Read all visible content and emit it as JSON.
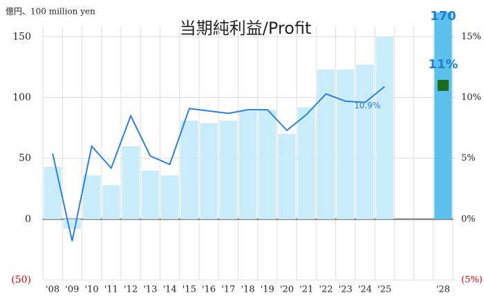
{
  "chart_data": {
    "type": "bar_line",
    "title": "当期純利益/Profit",
    "y_axis_label": "億円、100 million yen",
    "categories": [
      "'08",
      "'09",
      "'10",
      "'11",
      "'12",
      "'13",
      "'14",
      "'15",
      "'16",
      "'17",
      "'18",
      "'19",
      "'20",
      "'21",
      "'22",
      "'23",
      "'24",
      "'25",
      null,
      null,
      "'28"
    ],
    "series": [
      {
        "type": "bar",
        "color": "#c9ecfb",
        "highlight_color": "#5bc0eb",
        "values": [
          43,
          -8,
          36,
          28,
          60,
          40,
          36,
          81,
          79,
          81,
          89,
          90,
          70,
          92,
          123,
          123,
          127,
          150,
          null,
          null,
          170
        ],
        "value_labels": [
          null,
          null,
          null,
          null,
          null,
          null,
          null,
          null,
          null,
          null,
          null,
          null,
          null,
          null,
          null,
          null,
          null,
          null,
          null,
          null,
          "170"
        ]
      },
      {
        "type": "line",
        "axis": "y2",
        "color": "#2b7de9",
        "marker_color": "#1e6b1e",
        "values": [
          5.4,
          -1.8,
          6.0,
          4.2,
          8.5,
          5.2,
          4.5,
          9.1,
          8.9,
          8.7,
          9.0,
          9.0,
          7.3,
          8.6,
          10.3,
          9.7,
          9.6,
          10.9,
          null,
          null,
          11
        ],
        "value_labels": [
          null,
          null,
          null,
          null,
          null,
          null,
          null,
          null,
          null,
          null,
          null,
          null,
          null,
          null,
          null,
          null,
          null,
          "10.9%",
          null,
          null,
          "11%"
        ]
      }
    ],
    "ylim": [
      -50,
      170
    ],
    "yticks": [
      {
        "value": -50,
        "label": "(50)"
      },
      0,
      50,
      100,
      150
    ],
    "y2lim": [
      -5,
      17
    ],
    "y2ticks": [
      {
        "value": -5,
        "label": "(5%)"
      },
      {
        "value": 0,
        "label": "0%"
      },
      {
        "value": 5,
        "label": "5%"
      },
      {
        "value": 10,
        "label": "10%"
      },
      {
        "value": 15,
        "label": "15%"
      }
    ],
    "grid": true
  }
}
